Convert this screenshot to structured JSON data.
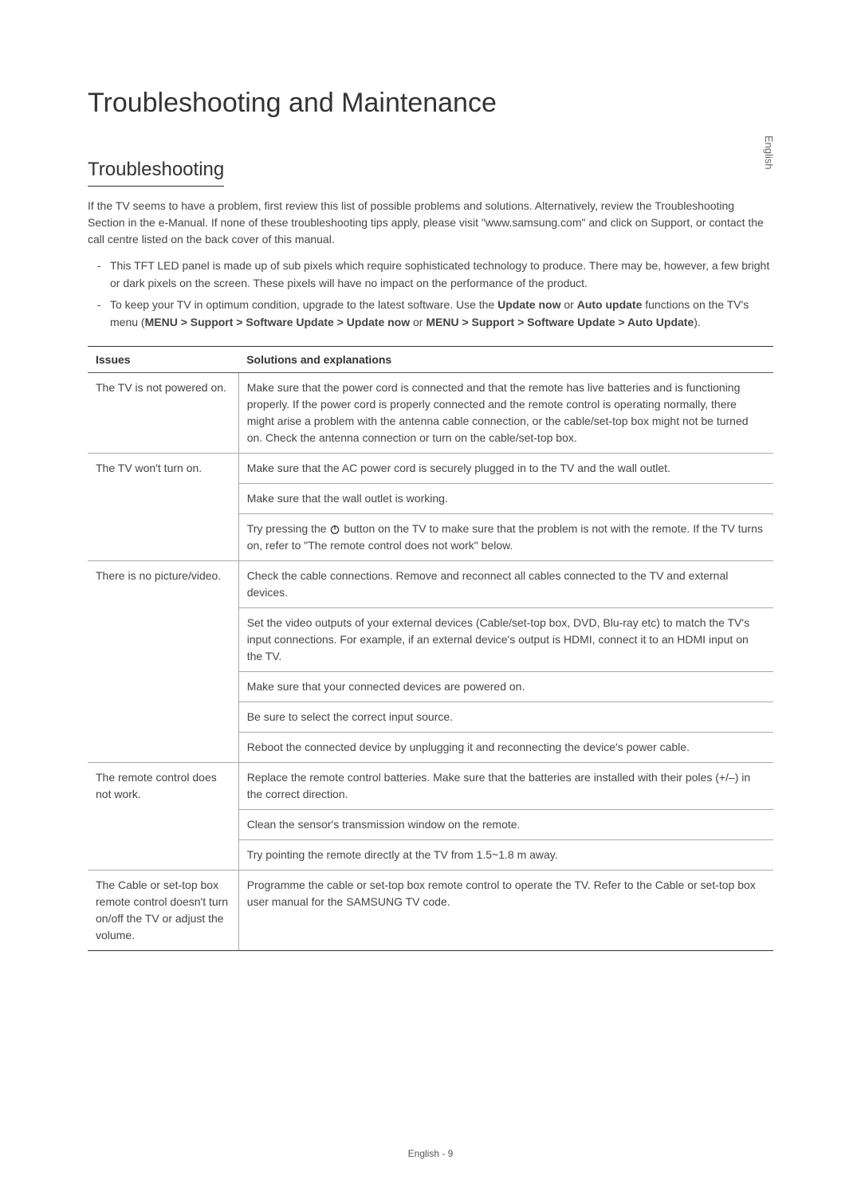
{
  "side_label": "English",
  "page_title": "Troubleshooting and Maintenance",
  "section_heading": "Troubleshooting",
  "intro": "If the TV seems to have a problem, first review this list of possible problems and solutions. Alternatively, review the Troubleshooting Section in the e-Manual. If none of these troubleshooting tips apply, please visit \"www.samsung.com\" and click on Support, or contact the call centre listed on the back cover of this manual.",
  "bullets": [
    {
      "text": "This TFT LED panel is made up of sub pixels which require sophisticated technology to produce. There may be, however, a few bright or dark pixels on the screen. These pixels will have no impact on the performance of the product."
    },
    {
      "prefix": "To keep your TV in optimum condition, upgrade to the latest software. Use the ",
      "bold1": "Update now",
      "mid1": " or ",
      "bold2": "Auto update",
      "mid2": " functions on the TV's menu (",
      "path": "MENU > Support > Software Update > Update now",
      "mid3": " or ",
      "path2": "MENU > Support > Software Update > Auto Update",
      "suffix": ")."
    }
  ],
  "table": {
    "header_issues": "Issues",
    "header_solutions": "Solutions and explanations",
    "rows": [
      {
        "issue": "The TV is not powered on.",
        "solutions": [
          "Make sure that the power cord is connected and that the remote has live batteries and is functioning properly. If the power cord is properly connected and the remote control is operating normally, there might arise a problem with the antenna cable connection, or the cable/set-top box might not be turned on. Check the antenna connection or turn on the cable/set-top box."
        ]
      },
      {
        "issue": "The TV won't turn on.",
        "solutions": [
          "Make sure that the AC power cord is securely plugged in to the TV and the wall outlet.",
          "Make sure that the wall outlet is working.",
          "__POWER__Try pressing the {ICON} button on the TV to make sure that the problem is not with the remote. If the TV turns on, refer to \"The remote control does not work\" below."
        ]
      },
      {
        "issue": "There is no picture/video.",
        "solutions": [
          "Check the cable connections. Remove and reconnect all cables connected to the TV and external devices.",
          "Set the video outputs of your external devices (Cable/set-top box, DVD, Blu-ray etc) to match the TV's input connections. For example, if an external device's output is HDMI, connect it to an HDMI input on the TV.",
          "Make sure that your connected devices are powered on.",
          "Be sure to select the correct input source.",
          "Reboot the connected device by unplugging it and reconnecting the device's power cable."
        ]
      },
      {
        "issue": "The remote control does not work.",
        "solutions": [
          "Replace the remote control batteries. Make sure that the batteries are installed with their poles (+/–) in the correct direction.",
          "Clean the sensor's transmission window on the remote.",
          "Try pointing the remote directly at the TV from 1.5~1.8 m away."
        ]
      },
      {
        "issue": "The Cable or set-top box remote control doesn't turn on/off the TV or adjust the volume.",
        "solutions": [
          "Programme the cable or set-top box remote control to operate the TV. Refer to the Cable or set-top box user manual for the SAMSUNG TV code."
        ]
      }
    ]
  },
  "footer": "English - 9",
  "colors": {
    "text": "#333333",
    "body_text": "#444444",
    "border_dark": "#333333",
    "border_light": "#aaaaaa",
    "background": "#ffffff"
  }
}
